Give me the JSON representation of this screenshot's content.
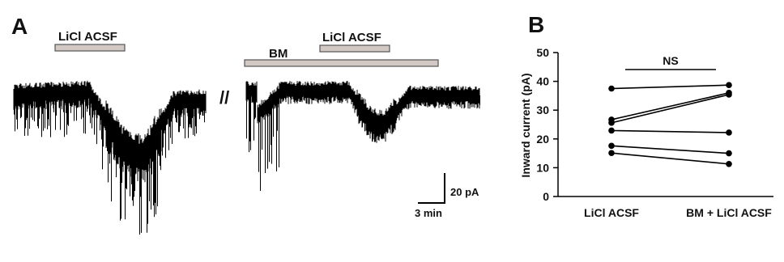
{
  "panel_a": {
    "label": "A",
    "bar_licl_1": "LiCl ACSF",
    "bar_bm": "BM",
    "bar_licl_2": "LiCl ACSF",
    "break_mark": "//",
    "scale_y": "20 pA",
    "scale_x": "3 min",
    "trace_color": "#000000",
    "bar_fill": "#d2c9c4",
    "bar_stroke": "#555555"
  },
  "panel_b": {
    "label": "B",
    "significance": "NS"
  },
  "chart_data": {
    "type": "scatter",
    "subtype": "paired before-after",
    "categories": [
      "LiCl ACSF",
      "BM + LiCl ACSF"
    ],
    "ylabel": "Inward current (pA)",
    "xlabel": "",
    "ylim": [
      0,
      50
    ],
    "yticks": [
      0,
      10,
      20,
      30,
      40,
      50
    ],
    "grid": false,
    "pairs": [
      [
        37.5,
        38.7
      ],
      [
        26.7,
        36.0
      ],
      [
        25.6,
        35.4
      ],
      [
        22.9,
        22.2
      ],
      [
        17.6,
        15.0
      ],
      [
        15.1,
        11.3
      ]
    ],
    "annotation": "NS",
    "marker_color": "#000000"
  }
}
